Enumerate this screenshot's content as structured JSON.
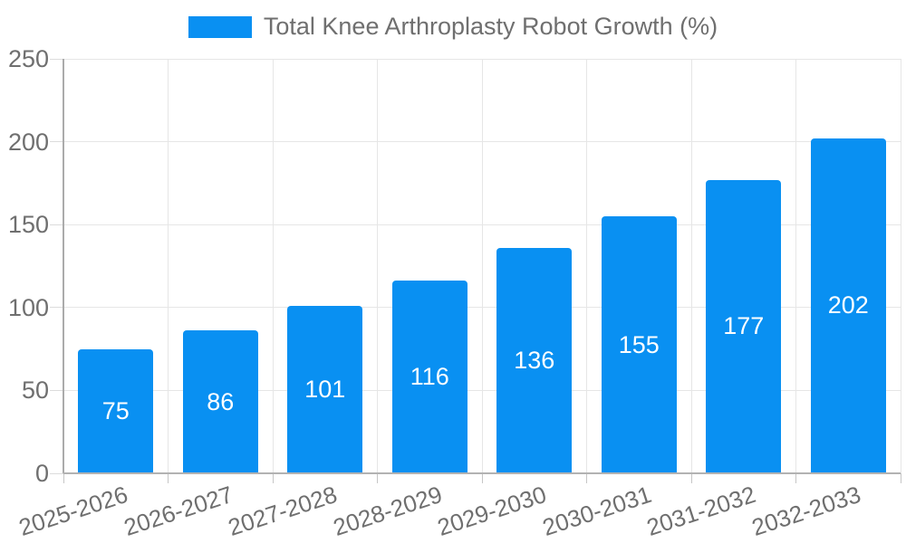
{
  "legend": {
    "label": "Total Knee Arthroplasty Robot Growth (%)"
  },
  "colors": {
    "bar": "#0990f2",
    "grid": "#e6e6e6",
    "axis": "#b0b0b0",
    "axis_label": "#6f6f6f",
    "value_label": "#ffffff"
  },
  "chart_data": {
    "type": "bar",
    "title": "Total Knee Arthroplasty Robot Growth (%)",
    "categories": [
      "2025-2026",
      "2026-2027",
      "2027-2028",
      "2028-2029",
      "2029-2030",
      "2030-2031",
      "2031-2032",
      "2032-2033"
    ],
    "series": [
      {
        "name": "Total Knee Arthroplasty Robot Growth (%)",
        "values": [
          75,
          86,
          101,
          116,
          136,
          155,
          177,
          202
        ]
      }
    ],
    "xlabel": "",
    "ylabel": "",
    "ylim": [
      0,
      250
    ],
    "y_ticks": [
      0,
      50,
      100,
      150,
      200,
      250
    ],
    "grid": true,
    "legend_position": "top",
    "value_label_position": "inside-center",
    "x_label_rotation_deg": -18
  }
}
